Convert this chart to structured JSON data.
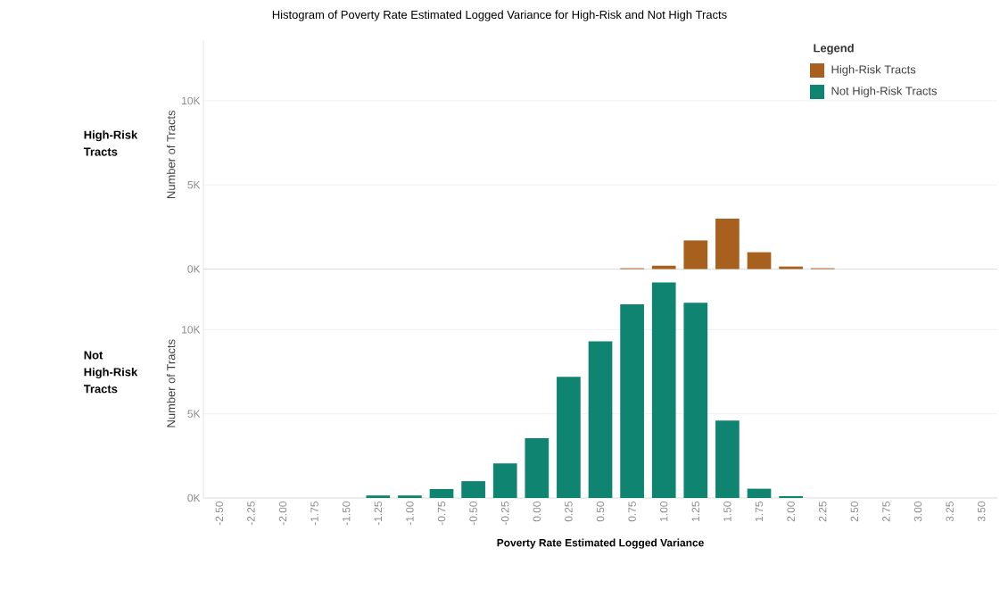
{
  "chart_data": [
    {
      "type": "bar",
      "title": "Histogram of Poverty Rate Estimated Logged Variance for High-Risk and Not High Tracts",
      "subtitle": "High-Risk Tracts",
      "ylabel": "Number of Tracts",
      "categories": [
        "-2.50",
        "-2.25",
        "-2.00",
        "-1.75",
        "-1.50",
        "-1.25",
        "-1.00",
        "-0.75",
        "-0.50",
        "-0.25",
        "0.00",
        "0.25",
        "0.50",
        "0.75",
        "1.00",
        "1.25",
        "1.50",
        "1.75",
        "2.00",
        "2.25",
        "2.50",
        "2.75",
        "3.00",
        "3.25",
        "3.50"
      ],
      "series": [
        {
          "name": "High-Risk Tracts",
          "color": "#a8601e",
          "values": [
            null,
            null,
            null,
            null,
            null,
            null,
            null,
            null,
            null,
            null,
            null,
            null,
            null,
            50,
            200,
            1700,
            3000,
            1000,
            150,
            50,
            null,
            null,
            null,
            null,
            null
          ]
        }
      ],
      "ylim": [
        0,
        13600
      ],
      "yticks": [
        {
          "value": 0,
          "label": "0K"
        },
        {
          "value": 5000,
          "label": "5K"
        },
        {
          "value": 10000,
          "label": "10K"
        }
      ],
      "grid": "y",
      "legend": "top right",
      "legend_title": "Legend",
      "tick_labels": "y"
    },
    {
      "type": "bar",
      "subtitle": "Not High-Risk Tracts",
      "ylabel": "Number of Tracts",
      "xlabel": "Poverty Rate Estimated Logged Variance",
      "categories": [
        "-2.50",
        "-2.25",
        "-2.00",
        "-1.75",
        "-1.50",
        "-1.25",
        "-1.00",
        "-0.75",
        "-0.50",
        "-0.25",
        "0.00",
        "0.25",
        "0.50",
        "0.75",
        "1.00",
        "1.25",
        "1.50",
        "1.75",
        "2.00",
        "2.25",
        "2.50",
        "2.75",
        "3.00",
        "3.25",
        "3.50"
      ],
      "series": [
        {
          "name": "Not High-Risk Tracts",
          "color": "#0f8470",
          "values": [
            null,
            null,
            null,
            null,
            null,
            150,
            150,
            530,
            1000,
            2050,
            3550,
            7200,
            9300,
            11500,
            12800,
            11600,
            4600,
            550,
            110,
            null,
            null,
            null,
            null,
            null,
            null
          ]
        }
      ],
      "ylim": [
        0,
        13600
      ],
      "yticks": [
        {
          "value": 0,
          "label": "0K"
        },
        {
          "value": 5000,
          "label": "5K"
        },
        {
          "value": 10000,
          "label": "10K"
        }
      ],
      "grid": "y"
    }
  ]
}
